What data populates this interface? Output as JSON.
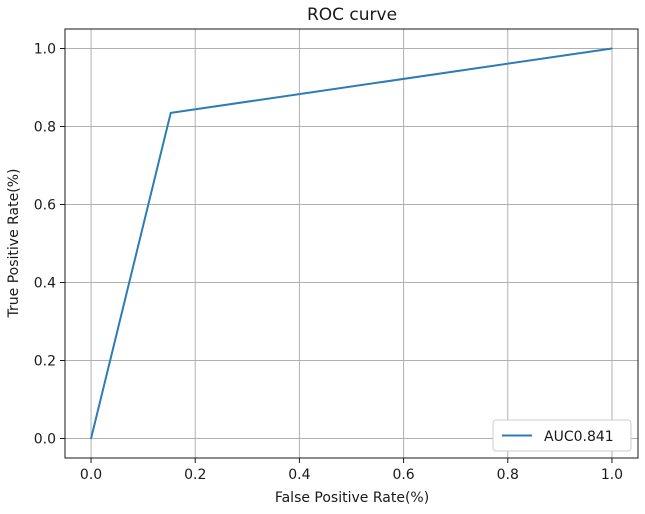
{
  "chart_data": {
    "type": "line",
    "title": "ROC curve",
    "xlabel": "False Positive Rate(%)",
    "ylabel": "True Positive Rate(%)",
    "xlim": [
      -0.05,
      1.05
    ],
    "ylim": [
      -0.05,
      1.05
    ],
    "x_ticks": [
      0.0,
      0.2,
      0.4,
      0.6,
      0.8,
      1.0
    ],
    "y_ticks": [
      0.0,
      0.2,
      0.4,
      0.6,
      0.8,
      1.0
    ],
    "x_tick_labels": [
      "0.0",
      "0.2",
      "0.4",
      "0.6",
      "0.8",
      "1.0"
    ],
    "y_tick_labels": [
      "0.0",
      "0.2",
      "0.4",
      "0.6",
      "0.8",
      "1.0"
    ],
    "grid": true,
    "legend_position": "lower-right",
    "series": [
      {
        "name": "AUC0.841",
        "color": "#2e7cb5",
        "x": [
          0.0,
          0.153,
          1.0
        ],
        "y": [
          0.0,
          0.835,
          1.0
        ]
      }
    ]
  }
}
